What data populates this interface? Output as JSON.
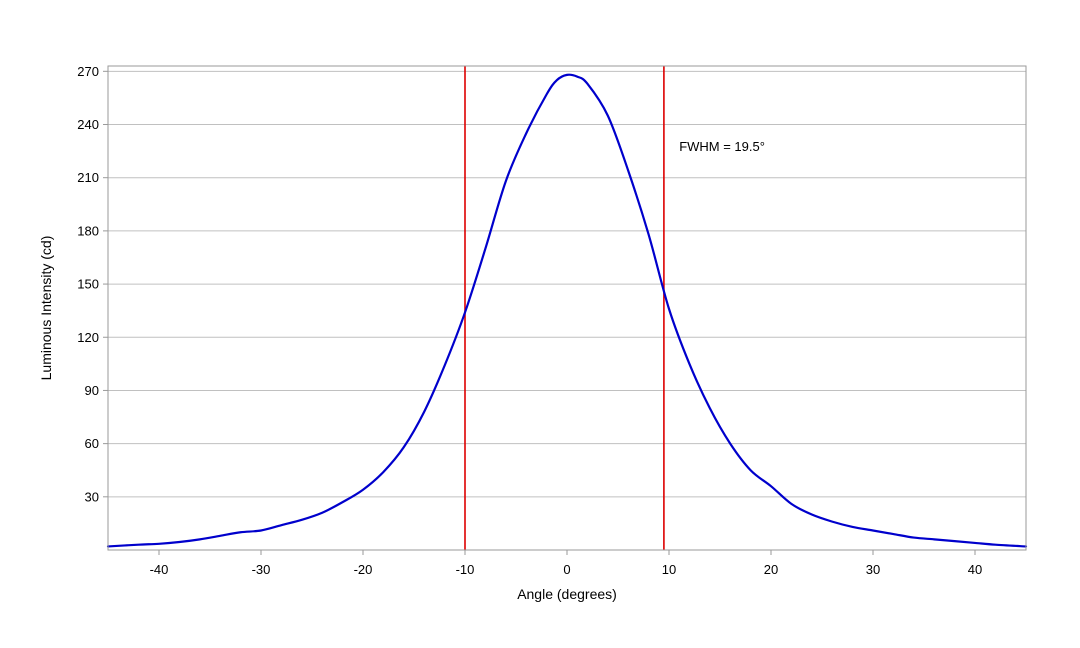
{
  "chart_data": {
    "type": "line",
    "title": "",
    "xlabel": "Angle (degrees)",
    "ylabel": "Luminous Intensity (cd)",
    "xlim": [
      -45,
      45
    ],
    "ylim": [
      0,
      273
    ],
    "x_ticks": [
      -40,
      -30,
      -20,
      -10,
      0,
      10,
      20,
      30,
      40
    ],
    "y_ticks": [
      30,
      60,
      90,
      120,
      150,
      180,
      210,
      240,
      270
    ],
    "x_tick_labels": [
      "-40",
      "-30",
      "-20",
      "-10",
      "0",
      "10",
      "20",
      "30",
      "40"
    ],
    "y_tick_labels": [
      "30",
      "60",
      "90",
      "120",
      "150",
      "180",
      "210",
      "240",
      "270"
    ],
    "grid": "horizontal",
    "legend": "none",
    "series": [
      {
        "color": "#0000cc",
        "x": [
          -45,
          -42,
          -40,
          -38,
          -36,
          -34,
          -32,
          -30,
          -28,
          -26,
          -24,
          -22,
          -20,
          -18,
          -16,
          -14,
          -12,
          -10,
          -8,
          -6,
          -4,
          -2,
          -1,
          0,
          1,
          2,
          4,
          6,
          8,
          10,
          12,
          14,
          16,
          18,
          20,
          22,
          24,
          26,
          28,
          30,
          32,
          34,
          36,
          38,
          40,
          42,
          45
        ],
        "y": [
          2,
          3,
          3.5,
          4.5,
          6,
          8,
          10,
          11,
          14,
          17,
          21,
          27,
          34,
          44,
          58,
          78,
          104,
          134,
          170,
          208,
          235,
          257,
          265,
          268,
          267,
          263,
          245,
          214,
          178,
          136,
          105,
          80,
          60,
          45,
          36,
          26,
          20,
          16,
          13,
          11,
          9,
          7,
          6,
          5,
          4,
          3,
          2
        ]
      }
    ],
    "vlines": [
      {
        "x": -10,
        "color": "#dd0000"
      },
      {
        "x": 9.5,
        "color": "#dd0000"
      }
    ],
    "annotations": [
      {
        "text": "FWHM = 19.5°",
        "x": 11,
        "y": 225
      }
    ],
    "colors": {
      "line": "#0000cc",
      "markers": "#dd0000",
      "grid": "#c0c0c0",
      "frame": "#9a9a9a"
    }
  }
}
